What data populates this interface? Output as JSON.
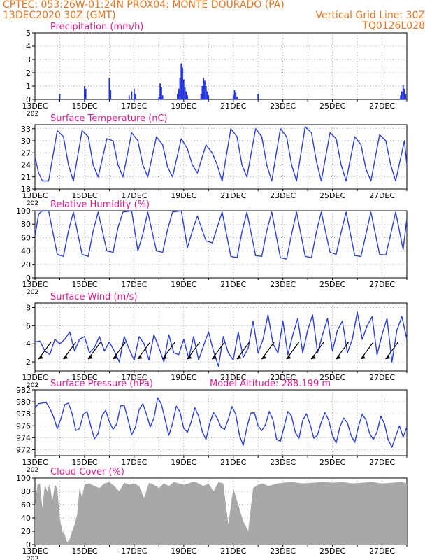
{
  "header": {
    "line1": "CPTEC:  053:26W-01:24N  PROX04: MONTE DOURADO (PA)",
    "line2_left": "13DEC2020 30Z (GMT)",
    "line2_right": "Vertical Grid Line: 30Z",
    "line3_right": "TQ0126L028"
  },
  "x_axis": {
    "tick_labels": [
      "13DEC",
      "15DEC",
      "17DEC",
      "19DEC",
      "21DEC",
      "23DEC",
      "25DEC",
      "27DEC"
    ],
    "clipped_label": "202"
  },
  "colors": {
    "title": "#e0188c",
    "header": "#e8741e",
    "line": "#2a3fe0",
    "bar": "#2233dd",
    "cloud": "#a8a8a8",
    "arrow": "#000000"
  },
  "chart_data": [
    {
      "type": "bar",
      "title": "Precipitation (mm/h)",
      "ylim": [
        0,
        5
      ],
      "yticks": [
        "0",
        "1",
        "2",
        "3",
        "4",
        "5"
      ],
      "xlim_days": [
        0,
        15
      ],
      "spikes": [
        [
          1.0,
          0.4
        ],
        [
          2.0,
          1.0
        ],
        [
          2.05,
          0.8
        ],
        [
          3.0,
          1.6
        ],
        [
          3.05,
          0.7
        ],
        [
          3.8,
          0.3
        ],
        [
          3.9,
          0.6
        ],
        [
          4.0,
          0.8
        ],
        [
          4.05,
          0.4
        ],
        [
          5.0,
          0.2
        ],
        [
          5.05,
          1.2
        ],
        [
          5.1,
          0.9
        ],
        [
          5.15,
          0.3
        ],
        [
          5.75,
          0.4
        ],
        [
          5.8,
          0.8
        ],
        [
          5.85,
          1.6
        ],
        [
          5.9,
          2.7
        ],
        [
          5.95,
          2.4
        ],
        [
          6.0,
          1.5
        ],
        [
          6.05,
          0.9
        ],
        [
          6.1,
          0.6
        ],
        [
          6.15,
          0.3
        ],
        [
          6.7,
          0.4
        ],
        [
          6.75,
          1.0
        ],
        [
          6.8,
          1.6
        ],
        [
          6.85,
          1.4
        ],
        [
          6.9,
          1.0
        ],
        [
          6.95,
          0.6
        ],
        [
          7.0,
          0.3
        ],
        [
          8.0,
          0.3
        ],
        [
          8.05,
          0.7
        ],
        [
          8.1,
          0.5
        ],
        [
          8.15,
          0.2
        ],
        [
          9.0,
          0.4
        ],
        [
          14.75,
          0.3
        ],
        [
          14.8,
          0.6
        ],
        [
          14.85,
          1.1
        ],
        [
          14.9,
          0.8
        ],
        [
          14.95,
          0.4
        ]
      ]
    },
    {
      "type": "line",
      "title": "Surface Temperature (nC)",
      "ylim": [
        18,
        34
      ],
      "yticks": [
        "18",
        "21",
        "24",
        "27",
        "30",
        "33"
      ],
      "x": [
        0,
        0.15,
        0.3,
        0.45,
        0.55,
        0.9,
        1.15,
        1.35,
        1.55,
        1.9,
        2.15,
        2.35,
        2.55,
        2.9,
        3.15,
        3.35,
        3.55,
        3.9,
        4.15,
        4.35,
        4.55,
        4.9,
        5.15,
        5.35,
        5.55,
        5.9,
        6.15,
        6.35,
        6.55,
        6.9,
        7.15,
        7.35,
        7.55,
        7.9,
        8.15,
        8.35,
        8.55,
        8.9,
        9.15,
        9.35,
        9.55,
        9.9,
        10.15,
        10.35,
        10.55,
        10.9,
        11.15,
        11.35,
        11.55,
        11.9,
        12.15,
        12.35,
        12.55,
        12.9,
        13.15,
        13.35,
        13.55,
        13.9,
        14.15,
        14.35,
        14.55,
        14.9,
        15.0
      ],
      "y": [
        26,
        22,
        20,
        20,
        20,
        32.5,
        31,
        24,
        20,
        32.5,
        31,
        24,
        21,
        30.5,
        30,
        24,
        21,
        32,
        30,
        24,
        21,
        31,
        29,
        23.5,
        21,
        30.5,
        28,
        24,
        22,
        29,
        27,
        24,
        20,
        33,
        31,
        24,
        21,
        33,
        31,
        24,
        20,
        33,
        31,
        24,
        20,
        33.5,
        32,
        25,
        20,
        32,
        30.5,
        24,
        20,
        31,
        29,
        23,
        20,
        31.5,
        30,
        24,
        20,
        30,
        24
      ]
    },
    {
      "type": "line",
      "title": "Relative Humidity (%)",
      "ylim": [
        0,
        100
      ],
      "yticks": [
        "0",
        "20",
        "40",
        "60",
        "80",
        "100"
      ],
      "x": [
        0,
        0.15,
        0.3,
        0.55,
        0.9,
        1.15,
        1.35,
        1.55,
        1.9,
        2.15,
        2.35,
        2.55,
        2.9,
        3.15,
        3.35,
        3.55,
        3.9,
        4.15,
        4.35,
        4.55,
        4.9,
        5.15,
        5.35,
        5.55,
        5.9,
        6.15,
        6.35,
        6.55,
        6.9,
        7.15,
        7.35,
        7.55,
        7.9,
        8.15,
        8.35,
        8.55,
        8.9,
        9.15,
        9.35,
        9.55,
        9.9,
        10.15,
        10.35,
        10.55,
        10.9,
        11.15,
        11.35,
        11.55,
        11.9,
        12.15,
        12.35,
        12.55,
        12.9,
        13.15,
        13.35,
        13.55,
        13.9,
        14.15,
        14.35,
        14.55,
        14.85,
        15.0
      ],
      "y": [
        62,
        95,
        100,
        100,
        35,
        32,
        70,
        98,
        35,
        32,
        70,
        98,
        40,
        38,
        75,
        98,
        100,
        40,
        65,
        98,
        40,
        38,
        72,
        98,
        100,
        45,
        70,
        92,
        55,
        52,
        75,
        98,
        32,
        30,
        68,
        98,
        33,
        32,
        70,
        98,
        30,
        28,
        65,
        98,
        32,
        30,
        68,
        98,
        38,
        35,
        68,
        98,
        33,
        32,
        65,
        98,
        35,
        34,
        65,
        98,
        42,
        88
      ]
    },
    {
      "type": "line",
      "title": "Surface Wind (m/s)",
      "ylim": [
        1,
        8.5
      ],
      "yticks": [
        "2",
        "4",
        "6",
        "8"
      ],
      "x": [
        0,
        0.2,
        0.4,
        0.6,
        0.8,
        1.0,
        1.2,
        1.4,
        1.6,
        1.8,
        2.0,
        2.2,
        2.4,
        2.6,
        2.8,
        3.0,
        3.2,
        3.4,
        3.6,
        3.8,
        4.0,
        4.2,
        4.4,
        4.6,
        4.8,
        5.0,
        5.2,
        5.4,
        5.6,
        5.8,
        6.0,
        6.2,
        6.4,
        6.6,
        6.8,
        7.0,
        7.2,
        7.4,
        7.6,
        7.8,
        8.0,
        8.2,
        8.4,
        8.6,
        8.8,
        9.0,
        9.2,
        9.4,
        9.6,
        9.8,
        10.0,
        10.2,
        10.4,
        10.6,
        10.8,
        11.0,
        11.2,
        11.4,
        11.6,
        11.8,
        12.0,
        12.2,
        12.4,
        12.6,
        12.8,
        13.0,
        13.2,
        13.4,
        13.6,
        13.8,
        14.0,
        14.2,
        14.4,
        14.6,
        14.8,
        15.0
      ],
      "y": [
        4.2,
        4.3,
        3.2,
        2.8,
        4.5,
        4.0,
        4.5,
        5.3,
        3.2,
        4.5,
        4.8,
        3.0,
        3.6,
        4.8,
        3.2,
        4.2,
        3.2,
        2.0,
        4.8,
        3.4,
        2.2,
        4.8,
        4.0,
        2.2,
        5.0,
        3.6,
        2.0,
        5.0,
        3.0,
        2.8,
        4.5,
        2.4,
        4.8,
        2.2,
        3.8,
        5.3,
        3.2,
        1.5,
        4.8,
        3.0,
        2.2,
        5.3,
        2.5,
        3.5,
        6.5,
        3.0,
        4.5,
        7.2,
        4.0,
        3.0,
        6.5,
        2.8,
        5.0,
        6.8,
        3.0,
        5.5,
        7.2,
        3.0,
        5.0,
        6.8,
        3.2,
        5.5,
        6.5,
        3.0,
        4.5,
        7.5,
        4.5,
        6.0,
        7.0,
        2.8,
        5.0,
        6.8,
        2.0,
        5.5,
        7.0,
        4.5
      ],
      "arrows_x": [
        0.2,
        1.2,
        2.2,
        3.2,
        4.2,
        5.2,
        6.2,
        7.2,
        8.2,
        9.2,
        10.2,
        11.2,
        12.2,
        13.2,
        14.2
      ],
      "arrows_from_level": 4.2,
      "arrows_to_level": 2.3
    },
    {
      "type": "line",
      "title": "Surface Pressure (hPa)",
      "annotation": "Model Altitude: 288.199 m",
      "ylim": [
        971,
        982
      ],
      "yticks": [
        "972",
        "974",
        "976",
        "978",
        "980",
        "982"
      ],
      "x": [
        0,
        0.15,
        0.3,
        0.45,
        0.6,
        0.75,
        0.9,
        1.05,
        1.2,
        1.35,
        1.5,
        1.65,
        1.8,
        1.95,
        2.1,
        2.25,
        2.4,
        2.55,
        2.7,
        2.85,
        3.0,
        3.15,
        3.3,
        3.45,
        3.6,
        3.75,
        3.9,
        4.05,
        4.2,
        4.35,
        4.5,
        4.65,
        4.8,
        4.95,
        5.1,
        5.25,
        5.4,
        5.55,
        5.7,
        5.85,
        6.0,
        6.15,
        6.3,
        6.45,
        6.6,
        6.75,
        6.9,
        7.05,
        7.2,
        7.35,
        7.5,
        7.65,
        7.8,
        7.95,
        8.1,
        8.25,
        8.4,
        8.55,
        8.7,
        8.85,
        9.0,
        9.15,
        9.3,
        9.45,
        9.6,
        9.75,
        9.9,
        10.05,
        10.2,
        10.35,
        10.5,
        10.65,
        10.8,
        10.95,
        11.1,
        11.25,
        11.4,
        11.55,
        11.7,
        11.85,
        12.0,
        12.15,
        12.3,
        12.45,
        12.6,
        12.75,
        12.9,
        13.05,
        13.2,
        13.35,
        13.5,
        13.65,
        13.8,
        13.95,
        14.1,
        14.25,
        14.4,
        14.55,
        14.7,
        14.85,
        15.0
      ],
      "y": [
        979.0,
        979.7,
        979.8,
        979.9,
        978.9,
        977.5,
        975.5,
        977.2,
        979.5,
        979.8,
        978.0,
        975.2,
        975.5,
        977.9,
        978.4,
        976.0,
        973.8,
        974.7,
        977.6,
        978.6,
        976.7,
        975.4,
        976.3,
        979.3,
        979.4,
        977.1,
        974.5,
        975.7,
        978.7,
        979.7,
        977.9,
        975.8,
        977.3,
        980.7,
        979.6,
        977.0,
        974.4,
        976.4,
        979.3,
        978.3,
        975.6,
        974.9,
        976.6,
        979.0,
        977.6,
        975.0,
        973.7,
        976.4,
        978.2,
        977.3,
        975.8,
        975.4,
        977.1,
        979.2,
        977.9,
        974.4,
        972.7,
        975.7,
        978.1,
        978.2,
        976.0,
        975.2,
        976.2,
        978.4,
        977.0,
        973.7,
        973.4,
        975.8,
        978.4,
        977.6,
        974.9,
        973.9,
        976.9,
        978.0,
        976.2,
        973.9,
        974.5,
        976.6,
        978.2,
        976.9,
        974.4,
        973.1,
        975.8,
        977.3,
        976.5,
        974.4,
        973.2,
        975.9,
        977.9,
        977.0,
        974.7,
        973.7,
        975.0,
        977.6,
        976.3,
        973.6,
        972.4,
        974.2,
        976.0,
        974.1,
        975.8
      ]
    },
    {
      "type": "area",
      "title": "Cloud Cover (%)",
      "ylim": [
        0,
        100
      ],
      "yticks": [
        "0",
        "20",
        "40",
        "60",
        "80",
        "100"
      ],
      "x": [
        0,
        0.1,
        0.2,
        0.3,
        0.4,
        0.5,
        0.6,
        0.7,
        0.8,
        0.9,
        1.0,
        1.1,
        1.2,
        1.3,
        1.4,
        1.5,
        1.6,
        1.7,
        1.8,
        1.9,
        2.0,
        2.2,
        2.4,
        2.6,
        2.8,
        3.0,
        3.2,
        3.4,
        3.6,
        3.8,
        4.0,
        4.2,
        4.4,
        4.6,
        4.8,
        5.0,
        5.2,
        5.4,
        5.6,
        5.8,
        6.0,
        6.2,
        6.4,
        6.6,
        6.8,
        7.0,
        7.2,
        7.4,
        7.6,
        7.8,
        8.0,
        8.2,
        8.4,
        8.6,
        8.8,
        9.0,
        9.2,
        9.4,
        9.6,
        9.8,
        10.0,
        10.4,
        10.8,
        11.2,
        11.6,
        12.0,
        12.4,
        12.8,
        13.2,
        13.6,
        14.0,
        14.4,
        14.8,
        15.0
      ],
      "y": [
        60,
        90,
        92,
        55,
        90,
        80,
        92,
        65,
        90,
        85,
        40,
        20,
        15,
        3,
        8,
        20,
        30,
        45,
        85,
        70,
        90,
        92,
        88,
        85,
        92,
        94,
        88,
        80,
        93,
        90,
        92,
        88,
        70,
        93,
        90,
        85,
        92,
        88,
        94,
        92,
        90,
        92,
        95,
        92,
        88,
        92,
        80,
        94,
        92,
        30,
        85,
        60,
        35,
        20,
        85,
        90,
        92,
        88,
        90,
        92,
        93,
        94,
        92,
        93,
        94,
        93,
        94,
        92,
        93,
        94,
        92,
        93,
        94,
        92
      ]
    }
  ]
}
